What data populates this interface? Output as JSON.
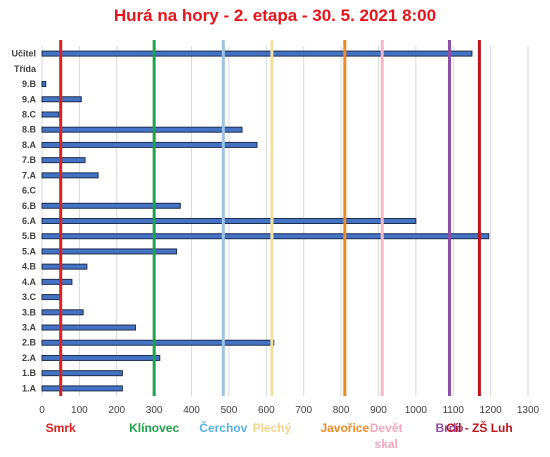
{
  "chart_data": {
    "type": "bar",
    "orientation": "horizontal",
    "title": "Hurá na hory - 2. etapa - 30. 5. 2021 8:00",
    "categories": [
      "Učitel",
      "Třída",
      "9.B",
      "9.A",
      "8.C",
      "8.B",
      "8.A",
      "7.B",
      "7.A",
      "6.C",
      "6.B",
      "6.A",
      "5.B",
      "5.A",
      "4.B",
      "4.A",
      "3.C",
      "3.B",
      "3.A",
      "2.B",
      "2.A",
      "1.B",
      "1.A"
    ],
    "values": [
      1150,
      null,
      10,
      105,
      45,
      535,
      575,
      115,
      150,
      0,
      370,
      1000,
      1195,
      360,
      120,
      80,
      50,
      110,
      250,
      620,
      315,
      215,
      215
    ],
    "xlim": [
      0,
      1300
    ],
    "xticks": [
      "0",
      "100",
      "200",
      "300",
      "400",
      "500",
      "600",
      "700",
      "800",
      "900",
      "1000",
      "1100",
      "1200",
      "1300"
    ],
    "grid": true,
    "bar_color": "#4472c4",
    "markers": [
      {
        "label": "Smrk",
        "value": 50,
        "color": "#e02020",
        "label_color": "#e02020"
      },
      {
        "label": "Klínovec",
        "value": 300,
        "color": "#1fa24a",
        "label_color": "#1fa24a"
      },
      {
        "label": "Čerchov",
        "value": 485,
        "color": "#9dc3e6",
        "label_color": "#5ab0de"
      },
      {
        "label": "Plechý",
        "value": 615,
        "color": "#f3dfa0",
        "label_color": "#f2d58e"
      },
      {
        "label": "Javořice",
        "value": 810,
        "color": "#f08a24",
        "label_color": "#f08a24"
      },
      {
        "label": "Devět skal",
        "value": 910,
        "color": "#f4b6c6",
        "label_color": "#f4a6bd"
      },
      {
        "label": "Brdo",
        "value": 1090,
        "color": "#8e4fa6",
        "label_color": "#8e4fa6"
      },
      {
        "label": "Cíl - ZŠ Luh",
        "value": 1170,
        "color": "#c0141c",
        "label_color": "#c0141c"
      }
    ]
  }
}
